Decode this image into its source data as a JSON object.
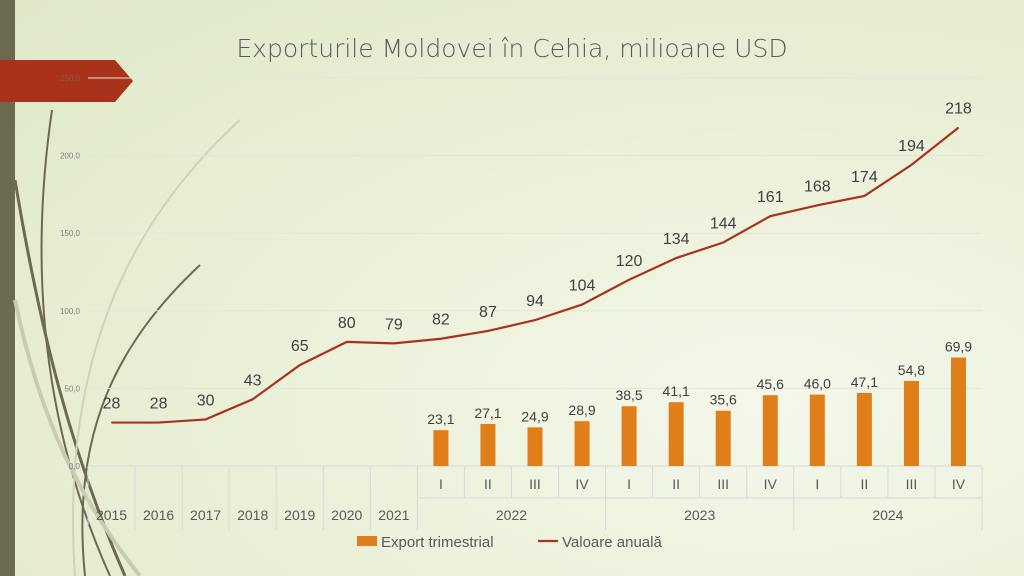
{
  "chart_data": {
    "type": "bar+line",
    "title": "Exporturile Moldovei în Cehia, milioane USD",
    "categories": [
      "2015",
      "2016",
      "2017",
      "2018",
      "2019",
      "2020",
      "2021",
      "I",
      "II",
      "III",
      "IV",
      "I",
      "II",
      "III",
      "IV",
      "I",
      "II",
      "III",
      "IV"
    ],
    "groups": [
      {
        "label": "2022",
        "start": 7,
        "end": 10
      },
      {
        "label": "2023",
        "start": 11,
        "end": 14
      },
      {
        "label": "2024",
        "start": 15,
        "end": 18
      }
    ],
    "series": [
      {
        "name": "Export trimestrial",
        "type": "bar",
        "color": "#e07e1a",
        "values": [
          null,
          null,
          null,
          null,
          null,
          null,
          null,
          23.1,
          27.1,
          24.9,
          28.9,
          38.5,
          41.1,
          35.6,
          45.6,
          46.0,
          47.1,
          54.8,
          69.9
        ],
        "labels": [
          "",
          "",
          "",
          "",
          "",
          "",
          "",
          "23,1",
          "27,1",
          "24,9",
          "28,9",
          "38,5",
          "41,1",
          "35,6",
          "45,6",
          "46,0",
          "47,1",
          "54,8",
          "69,9"
        ]
      },
      {
        "name": "Valoare anuală",
        "type": "line",
        "color": "#a8321a",
        "values": [
          28,
          28,
          30,
          43,
          65,
          80,
          79,
          82,
          87,
          94,
          104,
          120,
          134,
          144,
          161,
          168,
          174,
          194,
          218
        ]
      }
    ],
    "ylim": [
      0,
      250
    ],
    "yticks": [
      "0,0",
      "50,0",
      "100,0",
      "150,0",
      "200,0",
      "250,0"
    ],
    "legend": "bottom"
  }
}
